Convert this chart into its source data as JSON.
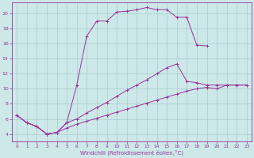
{
  "xlabel": "Windchill (Refroidissement éolien,°C)",
  "background_color": "#cce8e8",
  "grid_color": "#aacccc",
  "line_color": "#993399",
  "xlim": [
    -0.5,
    23.5
  ],
  "ylim": [
    3.0,
    21.5
  ],
  "xticks": [
    0,
    1,
    2,
    3,
    4,
    5,
    6,
    7,
    8,
    9,
    10,
    11,
    12,
    13,
    14,
    15,
    16,
    17,
    18,
    19,
    20,
    21,
    22,
    23
  ],
  "yticks": [
    4,
    6,
    8,
    10,
    12,
    14,
    16,
    18,
    20
  ],
  "line1_x": [
    0,
    1,
    2,
    3,
    4,
    5,
    6,
    7,
    8,
    9,
    10,
    11,
    12,
    13,
    14,
    15,
    16,
    17,
    18,
    19
  ],
  "line1_y": [
    6.5,
    5.5,
    5.0,
    4.0,
    4.2,
    5.5,
    10.5,
    17.0,
    19.0,
    19.0,
    20.2,
    20.3,
    20.5,
    20.8,
    20.5,
    20.5,
    19.5,
    19.5,
    15.8,
    15.7
  ],
  "line2_x": [
    0,
    1,
    2,
    3,
    4,
    5,
    6,
    7,
    8,
    9,
    10,
    11,
    12,
    13,
    14,
    15,
    16,
    17,
    18,
    19,
    20,
    21,
    22,
    23
  ],
  "line2_y": [
    6.5,
    5.5,
    5.0,
    4.0,
    4.2,
    5.5,
    6.0,
    6.8,
    7.5,
    8.2,
    9.0,
    9.8,
    10.5,
    11.2,
    12.0,
    12.8,
    13.3,
    11.0,
    10.8,
    10.5,
    10.5,
    10.5,
    10.5,
    10.5
  ],
  "line3_x": [
    0,
    1,
    2,
    3,
    4,
    5,
    6,
    7,
    8,
    9,
    10,
    11,
    12,
    13,
    14,
    15,
    16,
    17,
    18,
    19,
    20,
    21,
    22,
    23
  ],
  "line3_y": [
    6.5,
    5.5,
    5.0,
    4.0,
    4.2,
    4.8,
    5.3,
    5.7,
    6.1,
    6.5,
    6.9,
    7.3,
    7.7,
    8.1,
    8.5,
    8.9,
    9.3,
    9.7,
    10.0,
    10.2,
    10.0,
    10.5,
    10.5,
    10.5
  ]
}
